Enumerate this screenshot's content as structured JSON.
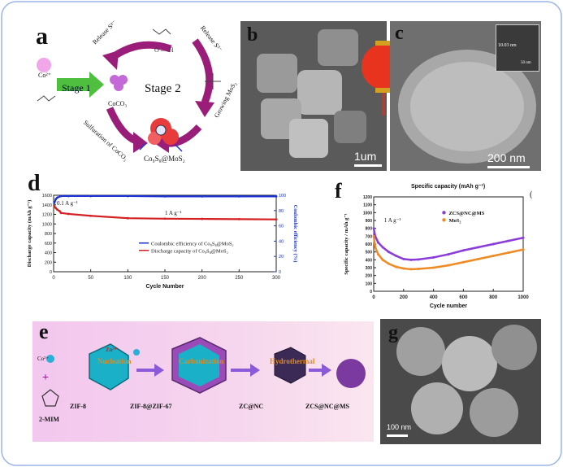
{
  "panels": {
    "a": {
      "label": "a",
      "ion": "Co²⁺",
      "stage1": "Stage 1",
      "stage2": "Stage 2",
      "coco3": "CoCO₃",
      "release_top": "Release S²⁻",
      "release_right": "Release S²⁻",
      "sulfuration": "Sulfuration of CoCO₃",
      "growing": "Growing MoS₂",
      "product": "Co₉S₈@MoS₂"
    },
    "b": {
      "label": "b",
      "scale": "1um"
    },
    "c": {
      "label": "c",
      "inset_scale": "10.03 nm",
      "inset_bar": "50 nm",
      "scale": "200 nm"
    },
    "d": {
      "label": "d"
    },
    "f": {
      "label": "f",
      "header": "Specific capacity (mAh g⁻¹)",
      "corner": "("
    },
    "e": {
      "label": "e",
      "co": "Co²⁺",
      "zn": "Zn²⁺",
      "plus": "+",
      "nucleation": "Nucleation",
      "carbonization": "Carbonization",
      "hydrothermal": "Hydrothermal",
      "zif8": "ZIF-8",
      "zif867": "ZIF-8@ZIF-67",
      "zcnc": "ZC@NC",
      "zcsncms": "ZCS@NC@MS",
      "mim": "2-MIM"
    },
    "g": {
      "label": "g",
      "scale": "100 nm"
    }
  },
  "chart_data": [
    {
      "type": "line",
      "panel": "d",
      "xlabel": "Cycle Number",
      "ylabel": "Discharge capacity (mAh g⁻¹)",
      "ylabel2": "Coulombic efficiency (%)",
      "xlim": [
        0,
        300
      ],
      "ylim": [
        0,
        1600
      ],
      "ylim2": [
        0,
        100
      ],
      "xticks": [
        0,
        50,
        100,
        150,
        200,
        250,
        300
      ],
      "yticks": [
        0,
        200,
        400,
        600,
        800,
        1000,
        1200,
        1400,
        1600
      ],
      "yticks2": [
        0,
        20,
        40,
        60,
        80,
        100
      ],
      "annotations": [
        "0.1 A g⁻¹",
        "1 A g⁻¹"
      ],
      "legend_position": "center-right",
      "series": [
        {
          "name": "Coulombic efficiency of Co₉S₈@MoS₂",
          "color": "#1a33d6",
          "axis": "right",
          "x": [
            1,
            3,
            5,
            10,
            20,
            50,
            100,
            150,
            200,
            250,
            300
          ],
          "values": [
            90,
            95,
            97,
            99,
            99,
            99,
            99,
            98.5,
            98.5,
            98.5,
            98.5
          ]
        },
        {
          "name": "Discharge capacity of Co₉S₈@MoS₂",
          "color": "#d42020",
          "axis": "left",
          "x": [
            1,
            3,
            5,
            8,
            10,
            20,
            50,
            100,
            150,
            200,
            250,
            300
          ],
          "values": [
            1370,
            1330,
            1300,
            1270,
            1230,
            1210,
            1170,
            1120,
            1110,
            1105,
            1100,
            1095
          ]
        }
      ]
    },
    {
      "type": "line",
      "panel": "f",
      "xlabel": "Cycle number",
      "ylabel": "Specific capacity / mAh g⁻¹",
      "xlim": [
        0,
        1000
      ],
      "ylim": [
        0,
        1200
      ],
      "xticks": [
        0,
        200,
        400,
        600,
        800,
        1000
      ],
      "yticks": [
        0,
        100,
        200,
        300,
        400,
        500,
        600,
        700,
        800,
        900,
        1000,
        1100,
        1200
      ],
      "annotations": [
        "1 A g⁻¹"
      ],
      "legend_position": "top-right",
      "series": [
        {
          "name": "ZCS@NC@MS",
          "color": "#8a3bd9",
          "x": [
            0,
            10,
            30,
            60,
            100,
            150,
            200,
            250,
            300,
            400,
            500,
            600,
            700,
            800,
            900,
            1000
          ],
          "values": [
            800,
            700,
            620,
            560,
            500,
            450,
            410,
            400,
            405,
            430,
            470,
            520,
            560,
            600,
            640,
            680
          ]
        },
        {
          "name": "MoS₂",
          "color": "#f08a24",
          "x": [
            0,
            10,
            30,
            60,
            100,
            150,
            200,
            250,
            300,
            400,
            500,
            600,
            700,
            800,
            900,
            1000
          ],
          "values": [
            700,
            560,
            470,
            400,
            350,
            310,
            290,
            280,
            285,
            300,
            330,
            370,
            410,
            450,
            490,
            530
          ]
        }
      ]
    }
  ]
}
